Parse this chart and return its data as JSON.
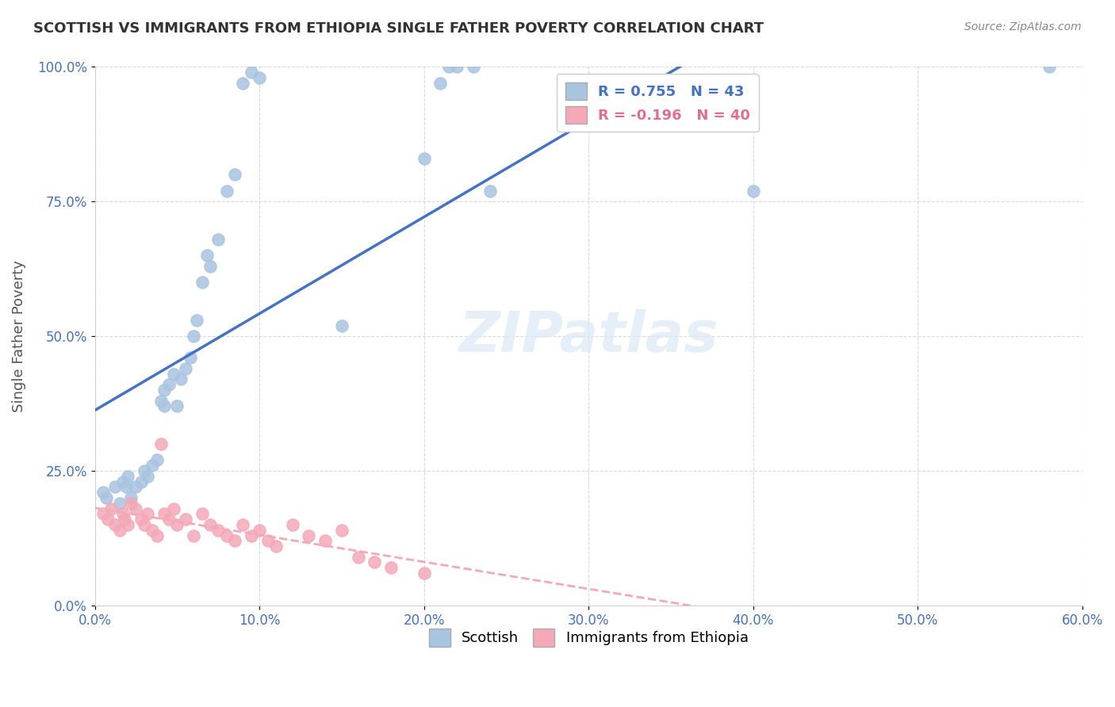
{
  "title": "SCOTTISH VS IMMIGRANTS FROM ETHIOPIA SINGLE FATHER POVERTY CORRELATION CHART",
  "source": "Source: ZipAtlas.com",
  "xlabel_bottom": "",
  "ylabel": "Single Father Poverty",
  "x_tick_labels": [
    "0.0%",
    "10.0%",
    "20.0%",
    "30.0%",
    "40.0%",
    "50.0%",
    "60.0%"
  ],
  "x_tick_positions": [
    0,
    0.1,
    0.2,
    0.3,
    0.4,
    0.5,
    0.6
  ],
  "y_tick_labels": [
    "0.0%",
    "25.0%",
    "50.0%",
    "75.0%",
    "100.0%"
  ],
  "y_tick_positions": [
    0,
    0.25,
    0.5,
    0.75,
    1.0
  ],
  "xlim": [
    0,
    0.6
  ],
  "ylim": [
    0,
    1.0
  ],
  "scottish_R": 0.755,
  "scottish_N": 43,
  "ethiopia_R": -0.196,
  "ethiopia_N": 40,
  "scottish_color": "#a8c4e0",
  "ethiopia_color": "#f4a8b8",
  "trendline_scottish_color": "#4472c4",
  "trendline_ethiopia_color": "#f4a8b8",
  "legend_label_scottish": "Scottish",
  "legend_label_ethiopia": "Immigrants from Ethiopia",
  "watermark": "ZIPatlas",
  "background_color": "#ffffff",
  "scottish_x": [
    0.005,
    0.007,
    0.012,
    0.015,
    0.017,
    0.019,
    0.02,
    0.022,
    0.025,
    0.028,
    0.03,
    0.032,
    0.035,
    0.038,
    0.04,
    0.042,
    0.042,
    0.045,
    0.048,
    0.05,
    0.052,
    0.055,
    0.058,
    0.06,
    0.062,
    0.065,
    0.068,
    0.07,
    0.075,
    0.08,
    0.085,
    0.09,
    0.095,
    0.1,
    0.15,
    0.2,
    0.21,
    0.215,
    0.22,
    0.23,
    0.24,
    0.4,
    0.58
  ],
  "scottish_y": [
    0.21,
    0.2,
    0.22,
    0.19,
    0.23,
    0.22,
    0.24,
    0.2,
    0.22,
    0.23,
    0.25,
    0.24,
    0.26,
    0.27,
    0.38,
    0.37,
    0.4,
    0.41,
    0.43,
    0.37,
    0.42,
    0.44,
    0.46,
    0.5,
    0.53,
    0.6,
    0.65,
    0.63,
    0.68,
    0.77,
    0.8,
    0.97,
    0.99,
    0.98,
    0.52,
    0.83,
    0.97,
    1.0,
    1.0,
    1.0,
    0.77,
    0.77,
    1.0
  ],
  "ethiopia_x": [
    0.005,
    0.008,
    0.01,
    0.012,
    0.015,
    0.017,
    0.018,
    0.02,
    0.022,
    0.025,
    0.028,
    0.03,
    0.032,
    0.035,
    0.038,
    0.04,
    0.042,
    0.045,
    0.048,
    0.05,
    0.055,
    0.06,
    0.065,
    0.07,
    0.075,
    0.08,
    0.085,
    0.09,
    0.095,
    0.1,
    0.105,
    0.11,
    0.12,
    0.13,
    0.14,
    0.15,
    0.16,
    0.17,
    0.18,
    0.2
  ],
  "ethiopia_y": [
    0.17,
    0.16,
    0.18,
    0.15,
    0.14,
    0.17,
    0.16,
    0.15,
    0.19,
    0.18,
    0.16,
    0.15,
    0.17,
    0.14,
    0.13,
    0.3,
    0.17,
    0.16,
    0.18,
    0.15,
    0.16,
    0.13,
    0.17,
    0.15,
    0.14,
    0.13,
    0.12,
    0.15,
    0.13,
    0.14,
    0.12,
    0.11,
    0.15,
    0.13,
    0.12,
    0.14,
    0.09,
    0.08,
    0.07,
    0.06
  ]
}
